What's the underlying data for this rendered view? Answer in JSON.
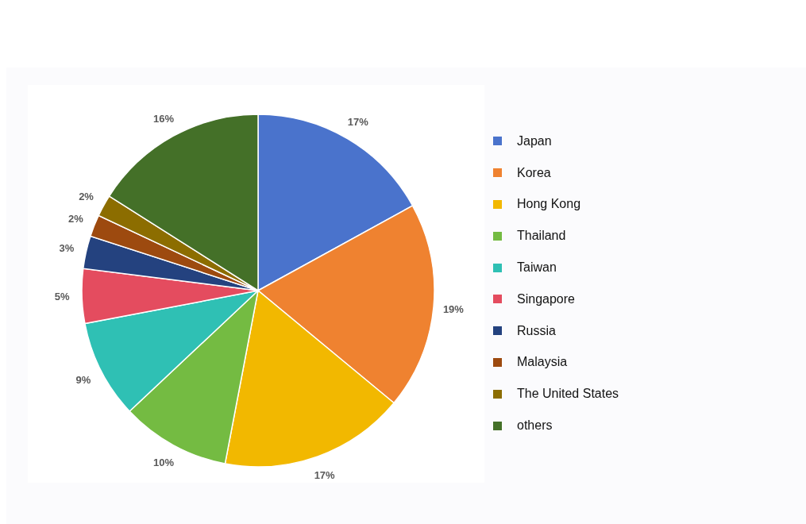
{
  "chart_data": {
    "type": "pie",
    "categories": [
      "Japan",
      "Korea",
      "Hong Kong",
      "Thailand",
      "Taiwan",
      "Singapore",
      "Russia",
      "Malaysia",
      "The United States",
      "others"
    ],
    "values": [
      17,
      19,
      17,
      10,
      9,
      5,
      3,
      2,
      2,
      16
    ],
    "value_labels": [
      "17%",
      "19%",
      "17%",
      "10%",
      "9%",
      "5%",
      "3%",
      "2%",
      "2%",
      "16%"
    ],
    "colors": [
      "#4a73cc",
      "#ef8230",
      "#f2b800",
      "#74bb42",
      "#2fc0b4",
      "#e44c5f",
      "#24427f",
      "#9d4a0f",
      "#8c6d00",
      "#447028"
    ],
    "legend": "right"
  }
}
